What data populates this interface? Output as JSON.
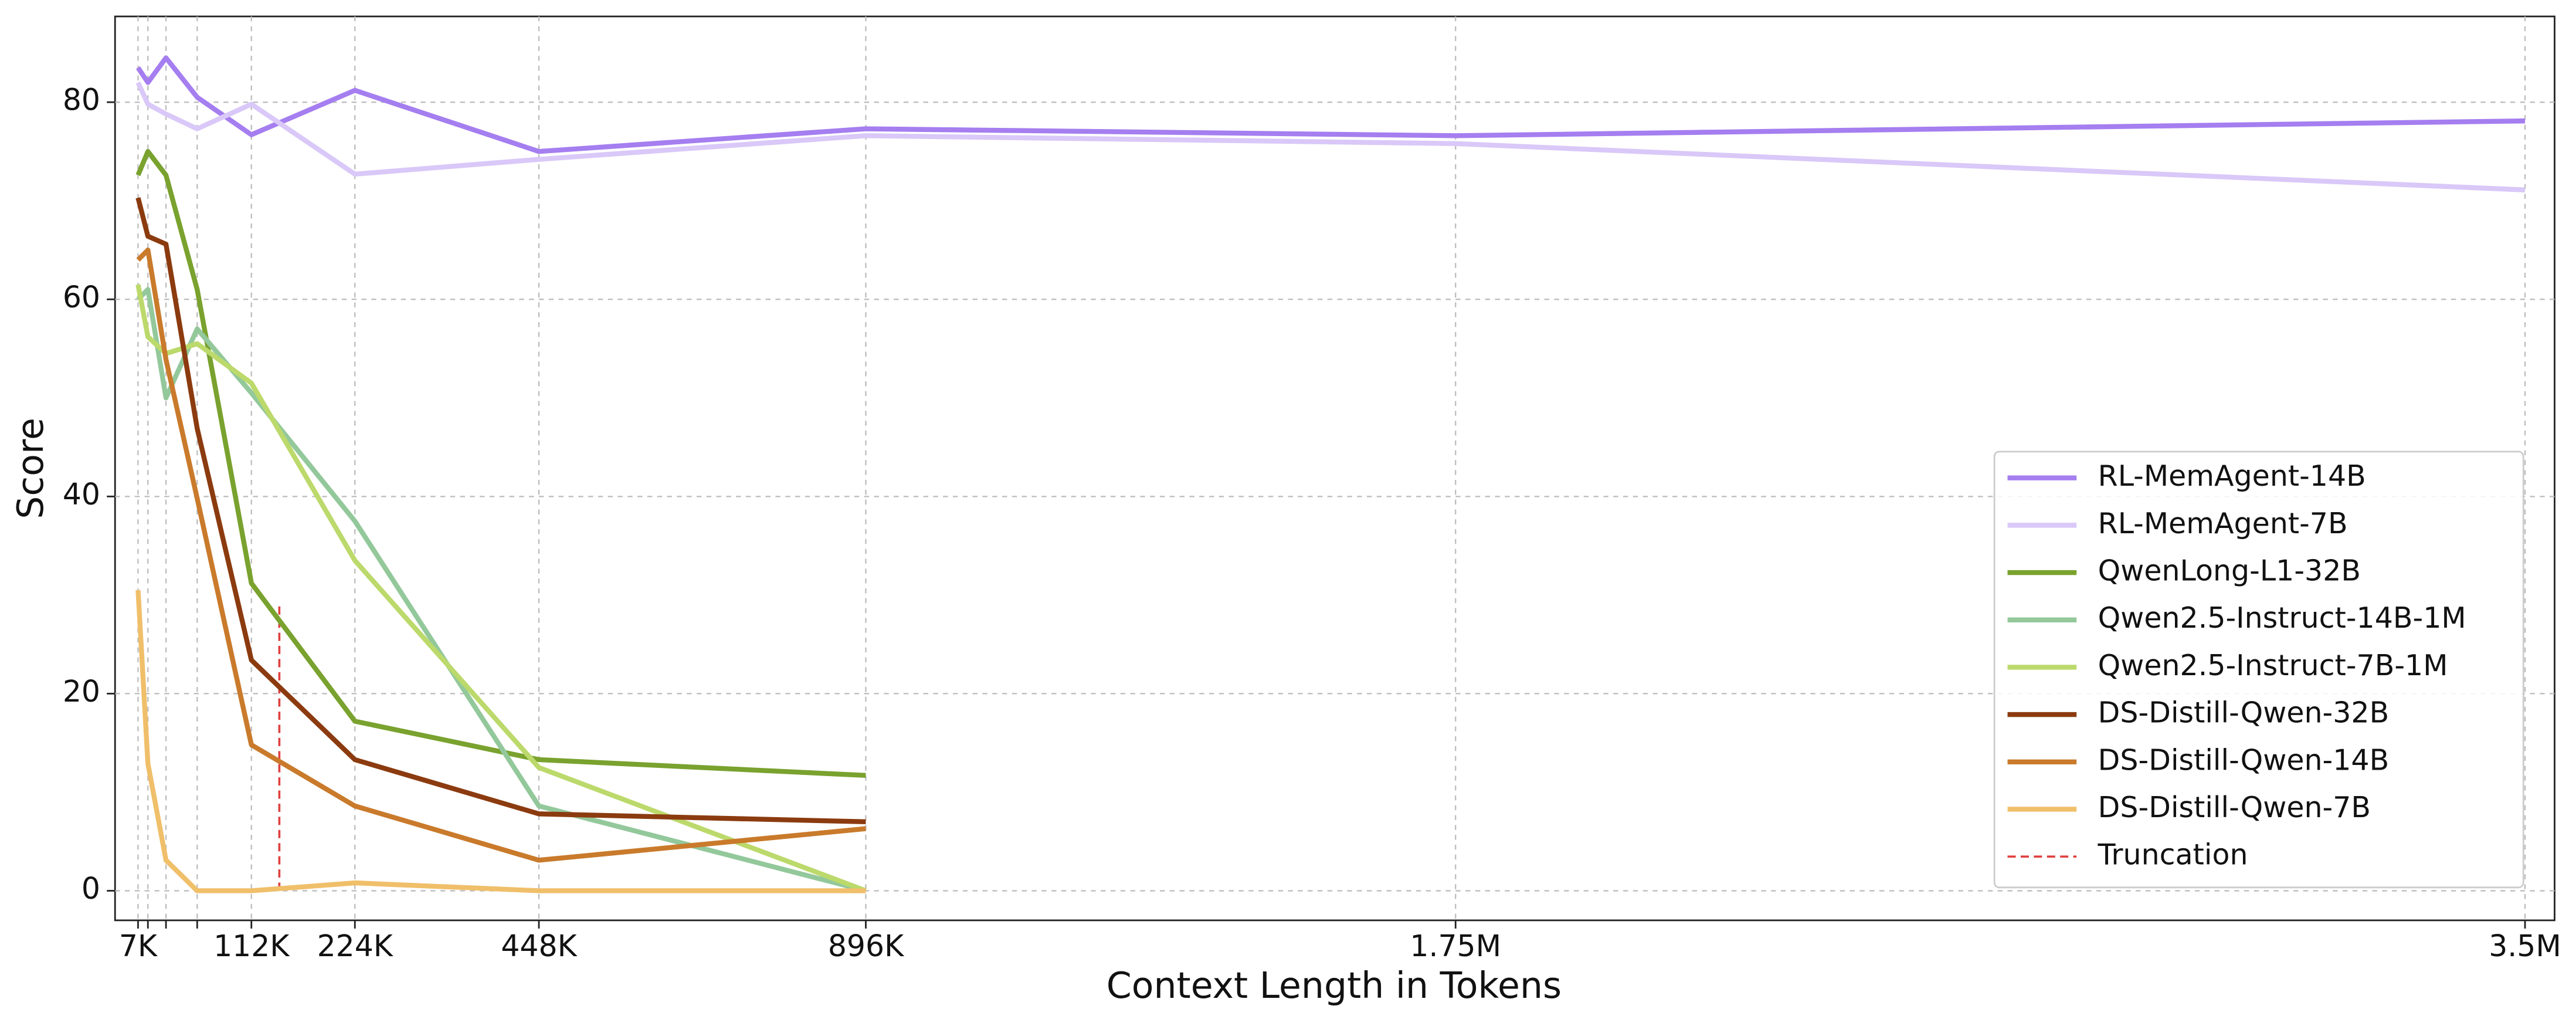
{
  "chart_data": {
    "type": "line",
    "x_label": "Context Length in Tokens",
    "y_label": "Score",
    "categories": [
      "7K",
      null,
      null,
      null,
      "112K",
      "224K",
      "448K",
      "896K",
      "1.75M",
      "3.5M"
    ],
    "series": [
      {
        "name": "RL-MemAgent-14B",
        "color": "#a57ef0",
        "values": [
          83.5,
          82,
          84.5,
          80.5,
          76.7,
          81.2,
          75,
          77.3,
          76.6,
          78.1
        ]
      },
      {
        "name": "RL-MemAgent-7B",
        "color": "#d9c8f8",
        "values": [
          82,
          79.8,
          78.8,
          77.3,
          79.8,
          72.7,
          74.2,
          76.6,
          75.8,
          71.1
        ]
      },
      {
        "name": "QwenLong-L1-32B",
        "color": "#79a22e",
        "values": [
          72.6,
          75,
          72.6,
          61,
          31.2,
          17.2,
          13.3,
          11.7,
          null,
          null
        ]
      },
      {
        "name": "Qwen2.5-Instruct-14B-1M",
        "color": "#93c89b",
        "values": [
          60,
          61,
          50,
          57,
          50.5,
          37.5,
          8.6,
          0,
          null,
          null
        ]
      },
      {
        "name": "Qwen2.5-Instruct-7B-1M",
        "color": "#bcd96b",
        "values": [
          61.5,
          56.2,
          54.5,
          55.5,
          51.5,
          33.5,
          12.5,
          0,
          null,
          null
        ]
      },
      {
        "name": "DS-Distill-Qwen-32B",
        "color": "#8b3b0f",
        "values": [
          70.3,
          66.4,
          65.6,
          46.9,
          23.4,
          13.3,
          7.8,
          7,
          null,
          null
        ]
      },
      {
        "name": "DS-Distill-Qwen-14B",
        "color": "#c97a2b",
        "values": [
          64,
          65,
          53.9,
          39.8,
          14.8,
          8.6,
          3.1,
          6.3,
          null,
          null
        ]
      },
      {
        "name": "DS-Distill-Qwen-7B",
        "color": "#f0bf6a",
        "values": [
          30.5,
          12.9,
          3.1,
          0,
          0,
          0.8,
          0,
          0,
          null,
          null
        ]
      }
    ],
    "truncation": {
      "name": "Truncation",
      "color": "#e04040",
      "top": 29
    },
    "ylim": [
      -3,
      88.7
    ],
    "yticks": [
      0,
      20,
      40,
      60,
      80
    ],
    "grid": true,
    "legend": "lower right"
  }
}
